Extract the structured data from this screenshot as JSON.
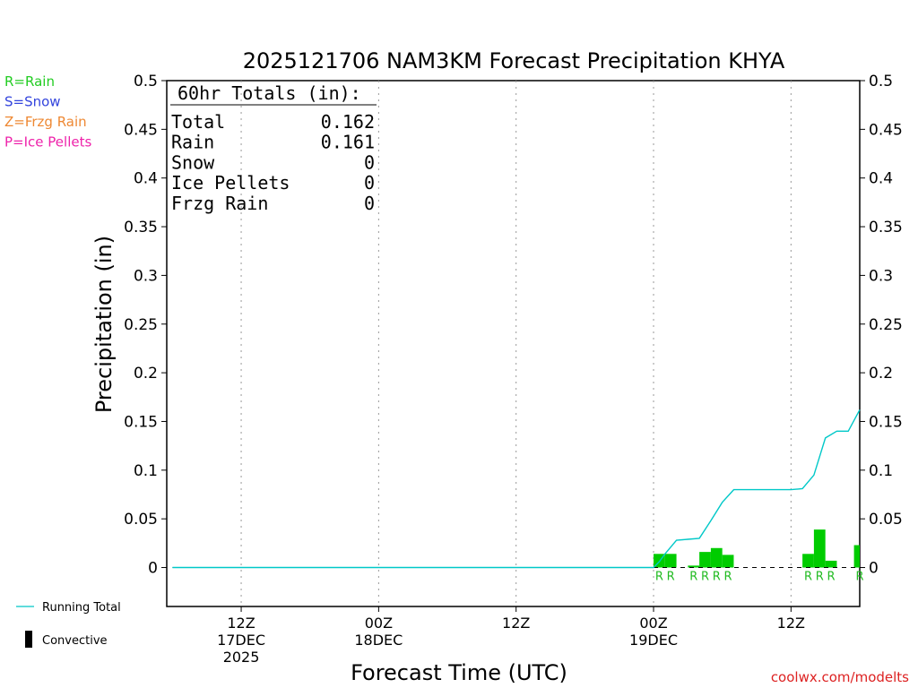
{
  "chart_data": {
    "type": "bar",
    "title": "2025121706 NAM3KM Forecast Precipitation KHYA",
    "xlabel": "Forecast Time (UTC)",
    "ylabel": "Precipitation (in)",
    "ylim": [
      -0.04,
      0.5
    ],
    "xlim_hours": [
      -0.5,
      60
    ],
    "y_ticks": [
      "0",
      "0.05",
      "0.1",
      "0.15",
      "0.2",
      "0.25",
      "0.3",
      "0.35",
      "0.4",
      "0.45",
      "0.5"
    ],
    "x_ticks": [
      {
        "label": "12Z",
        "sub": "17DEC",
        "sub2": "2025",
        "hour": 6
      },
      {
        "label": "00Z",
        "sub": "18DEC",
        "sub2": "",
        "hour": 18
      },
      {
        "label": "12Z",
        "sub": "",
        "sub2": "",
        "hour": 30
      },
      {
        "label": "00Z",
        "sub": "19DEC",
        "sub2": "",
        "hour": 42
      },
      {
        "label": "12Z",
        "sub": "",
        "sub2": "",
        "hour": 54
      }
    ],
    "grid": "vertical dotted",
    "series": [
      {
        "name": "Rain",
        "color": "#00cc00",
        "bars": [
          {
            "hour": 42.5,
            "value": 0.014,
            "type": "R"
          },
          {
            "hour": 43.5,
            "value": 0.014,
            "type": "R"
          },
          {
            "hour": 45.5,
            "value": 0.002,
            "type": "R"
          },
          {
            "hour": 46.5,
            "value": 0.016,
            "type": "R"
          },
          {
            "hour": 47.5,
            "value": 0.02,
            "type": "R"
          },
          {
            "hour": 48.5,
            "value": 0.013,
            "type": "R"
          },
          {
            "hour": 55.5,
            "value": 0.014,
            "type": "R"
          },
          {
            "hour": 56.5,
            "value": 0.039,
            "type": "R"
          },
          {
            "hour": 57.5,
            "value": 0.007,
            "type": "R"
          },
          {
            "hour": 60.0,
            "value": 0.023,
            "type": "R"
          }
        ]
      },
      {
        "name": "Running Total",
        "color": "#00c8c8",
        "points": [
          [
            0,
            0
          ],
          [
            42,
            0
          ],
          [
            42.5,
            0.006
          ],
          [
            43,
            0.014
          ],
          [
            44,
            0.028
          ],
          [
            45,
            0.029
          ],
          [
            46,
            0.03
          ],
          [
            47,
            0.048
          ],
          [
            48,
            0.067
          ],
          [
            49,
            0.08
          ],
          [
            50,
            0.08
          ],
          [
            51,
            0.08
          ],
          [
            52,
            0.08
          ],
          [
            53,
            0.08
          ],
          [
            54,
            0.08
          ],
          [
            55,
            0.081
          ],
          [
            56,
            0.095
          ],
          [
            57,
            0.133
          ],
          [
            58,
            0.14
          ],
          [
            59,
            0.14
          ],
          [
            60,
            0.162
          ]
        ]
      }
    ]
  },
  "totals": {
    "heading": "60hr Totals (in):",
    "rows": [
      {
        "label": "Total",
        "value": "0.162"
      },
      {
        "label": "Rain",
        "value": "0.161"
      },
      {
        "label": "Snow",
        "value": "0"
      },
      {
        "label": "Ice Pellets",
        "value": "0"
      },
      {
        "label": "Frzg Rain",
        "value": "0"
      }
    ]
  },
  "ptype_legend": [
    {
      "text": "R=Rain",
      "color": "#22cc22"
    },
    {
      "text": "S=Snow",
      "color": "#3344dd"
    },
    {
      "text": "Z=Frzg Rain",
      "color": "#ee8833"
    },
    {
      "text": "P=Ice Pellets",
      "color": "#ee22aa"
    }
  ],
  "bottom_legend": {
    "running_total": "Running Total",
    "convective": "Convective"
  },
  "watermark": "coolwx.com/modelts"
}
